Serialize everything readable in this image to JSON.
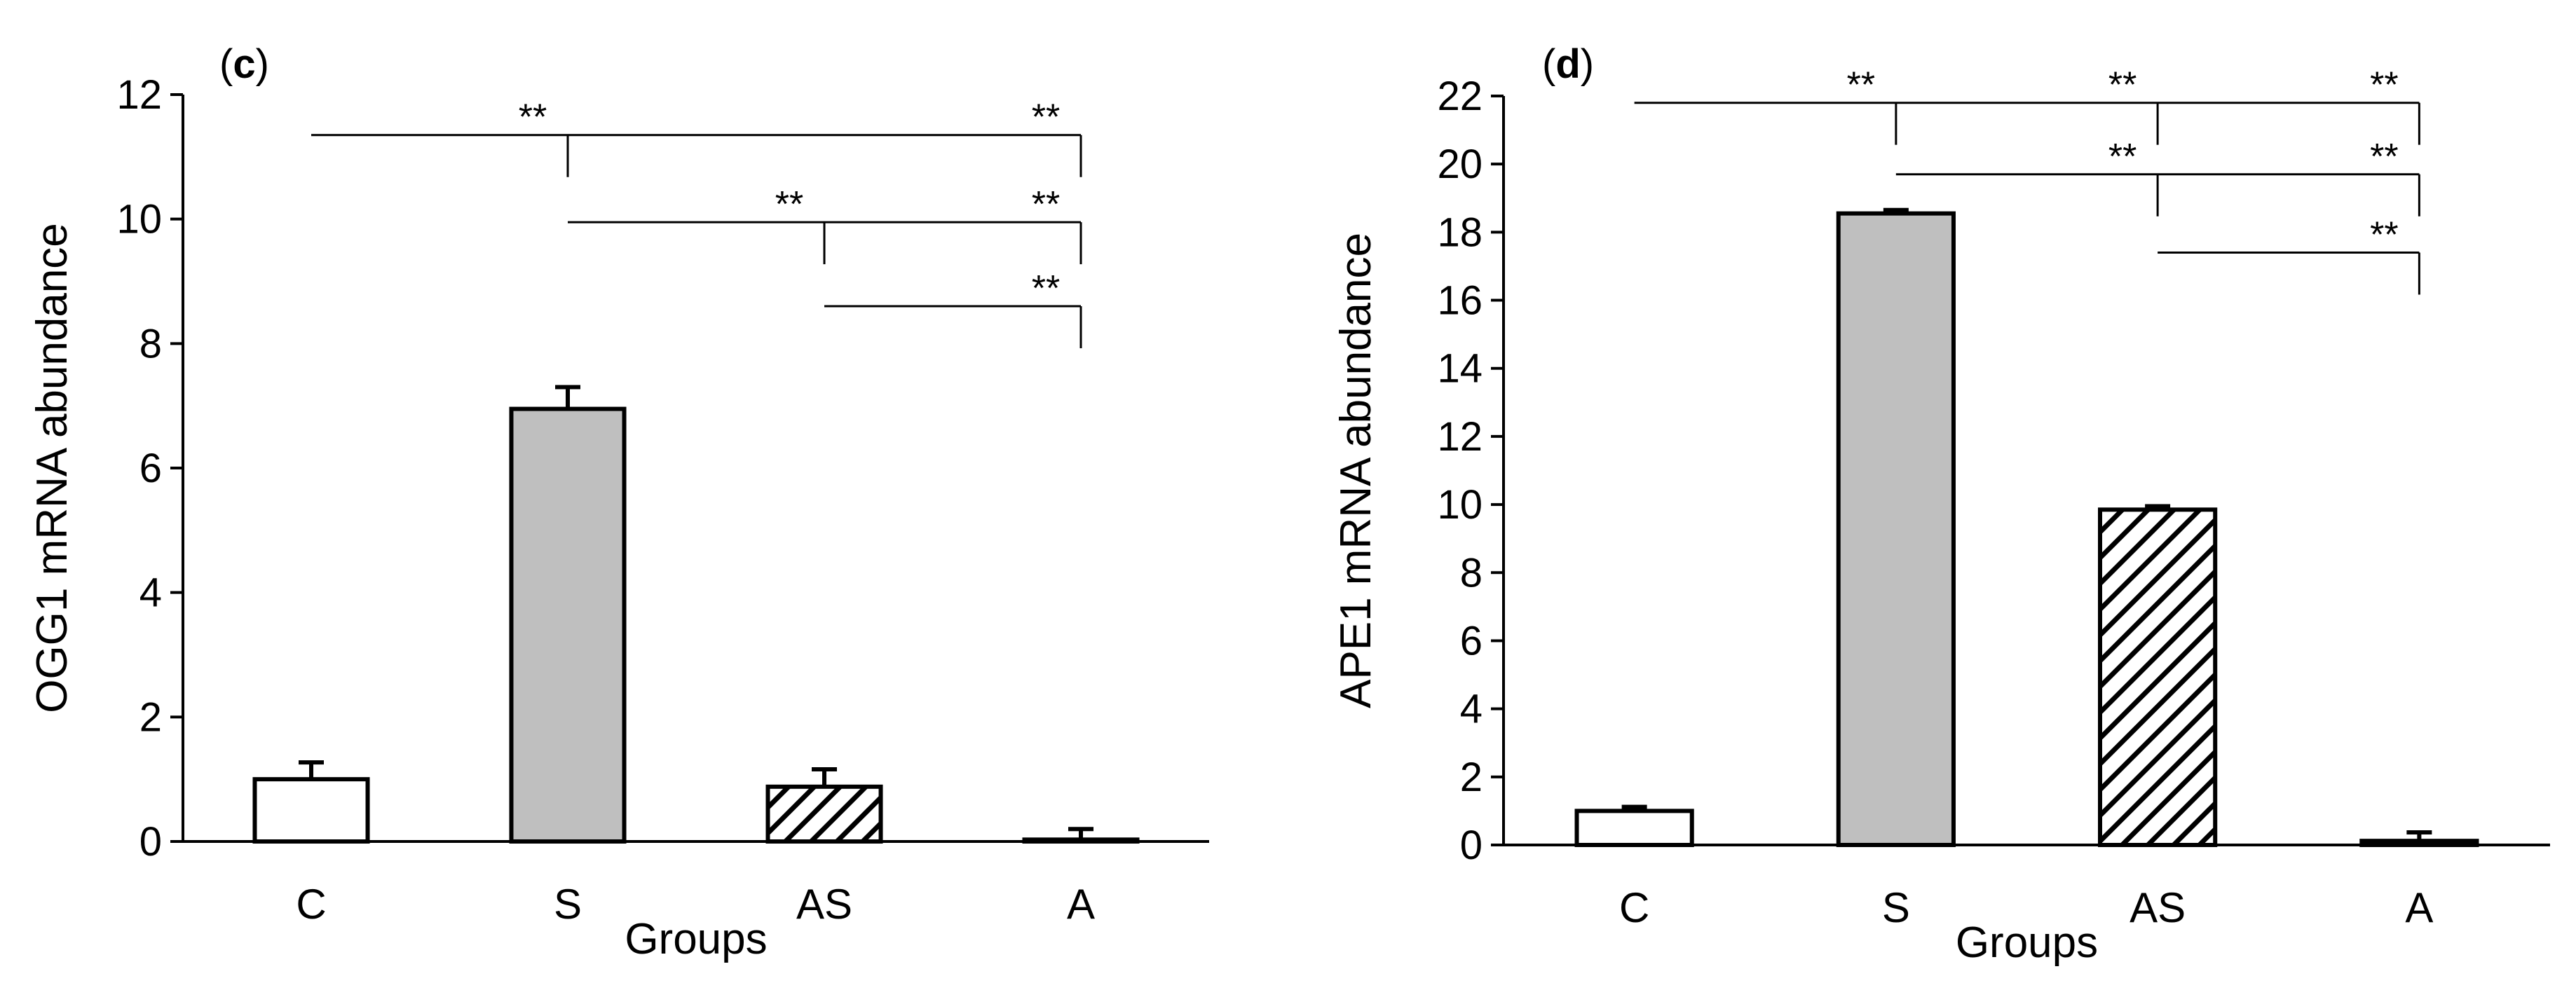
{
  "chart_data": [
    {
      "type": "bar",
      "panel_label": "(c)",
      "y_label": "OGG1 mRNA abundance",
      "x_label": "Groups",
      "categories": [
        "C",
        "S",
        "AS",
        "A"
      ],
      "values": [
        1.0,
        6.95,
        0.88,
        0.03
      ],
      "errors": [
        0.27,
        0.35,
        0.28,
        0.17
      ],
      "colors": [
        "#ffffff",
        "#bfbfbf",
        "#ffffff",
        "#ffffff"
      ],
      "hatch": [
        false,
        false,
        true,
        false
      ],
      "ylim": [
        0,
        12
      ],
      "yticks": [
        0,
        2,
        4,
        6,
        8,
        10,
        12
      ],
      "brackets": [
        {
          "y": 11.35,
          "from": "C",
          "marks": [
            {
              "to": "S",
              "label": "**"
            },
            {
              "to": "A",
              "label": "**"
            }
          ]
        },
        {
          "y": 9.95,
          "from": "S",
          "marks": [
            {
              "to": "AS",
              "label": "**"
            },
            {
              "to": "A",
              "label": "**"
            }
          ]
        },
        {
          "y": 8.6,
          "from": "AS",
          "marks": [
            {
              "to": "A",
              "label": "**"
            }
          ]
        }
      ]
    },
    {
      "type": "bar",
      "panel_label": "(d)",
      "y_label": "APE1 mRNA abundance",
      "x_label": "Groups",
      "categories": [
        "C",
        "S",
        "AS",
        "A"
      ],
      "values": [
        1.0,
        18.55,
        9.85,
        0.12
      ],
      "errors": [
        0.12,
        0.1,
        0.1,
        0.25
      ],
      "colors": [
        "#ffffff",
        "#bfbfbf",
        "#ffffff",
        "#ffffff"
      ],
      "hatch": [
        false,
        false,
        true,
        false
      ],
      "ylim": [
        0,
        22
      ],
      "yticks": [
        0,
        2,
        4,
        6,
        8,
        10,
        12,
        14,
        16,
        18,
        20,
        22
      ],
      "brackets": [
        {
          "y": 21.8,
          "from": "C",
          "marks": [
            {
              "to": "S",
              "label": "**"
            },
            {
              "to": "AS",
              "label": "**"
            },
            {
              "to": "A",
              "label": "**"
            }
          ]
        },
        {
          "y": 19.7,
          "from": "S",
          "marks": [
            {
              "to": "AS",
              "label": "**"
            },
            {
              "to": "A",
              "label": "**"
            }
          ]
        },
        {
          "y": 17.4,
          "from": "AS",
          "marks": [
            {
              "to": "A",
              "label": "**"
            }
          ]
        }
      ]
    }
  ]
}
